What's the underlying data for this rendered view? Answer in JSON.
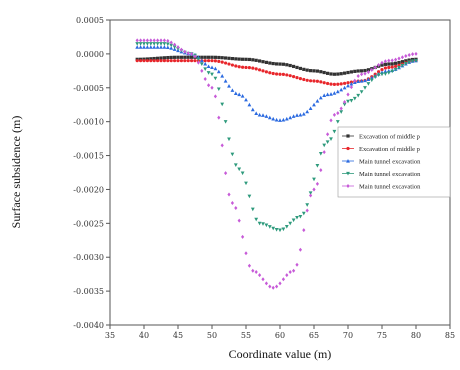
{
  "chart_data": {
    "type": "scatter",
    "xlabel": "Coordinate value (m)",
    "ylabel": "Surface subsidence (m)",
    "xlim": [
      35,
      85
    ],
    "ylim": [
      -0.004,
      0.0005
    ],
    "x_ticks": [
      "35",
      "40",
      "45",
      "50",
      "55",
      "60",
      "65",
      "70",
      "75",
      "80",
      "85"
    ],
    "y_ticks": [
      "0.0005",
      "0.0000",
      "-0.0005",
      "-0.0010",
      "-0.0015",
      "-0.0020",
      "-0.0025",
      "-0.0030",
      "-0.0035",
      "-0.0040"
    ],
    "legend_position": "right",
    "series": [
      {
        "name": "Excavation of middle p",
        "color": "#333333",
        "marker": "square",
        "points": [
          [
            39,
            -8e-05
          ],
          [
            45,
            -5e-05
          ],
          [
            50,
            -5e-05
          ],
          [
            55,
            -8e-05
          ],
          [
            60,
            -0.00015
          ],
          [
            65,
            -0.00025
          ],
          [
            68,
            -0.0003
          ],
          [
            72,
            -0.00025
          ],
          [
            76,
            -0.00015
          ],
          [
            80,
            -8e-05
          ]
        ]
      },
      {
        "name": "Excavation of middle p",
        "color": "#e8262b",
        "marker": "circle",
        "points": [
          [
            39,
            -0.0001
          ],
          [
            45,
            -0.0001
          ],
          [
            50,
            -0.0001
          ],
          [
            55,
            -0.0002
          ],
          [
            60,
            -0.0003
          ],
          [
            65,
            -0.0004
          ],
          [
            68,
            -0.00045
          ],
          [
            72,
            -0.0004
          ],
          [
            76,
            -0.0002
          ],
          [
            80,
            -0.0001
          ]
        ]
      },
      {
        "name": "Main tunnel excavation",
        "color": "#2b6ae0",
        "marker": "triangle-up",
        "points": [
          [
            39,
            0.0001
          ],
          [
            43,
            0.0001
          ],
          [
            47,
            0.0
          ],
          [
            50,
            -0.0002
          ],
          [
            54,
            -0.0006
          ],
          [
            57,
            -0.0009
          ],
          [
            60,
            -0.00098
          ],
          [
            63,
            -0.0009
          ],
          [
            67,
            -0.0006
          ],
          [
            72,
            -0.0004
          ],
          [
            76,
            -0.00025
          ],
          [
            80,
            -0.0001
          ]
        ]
      },
      {
        "name": "Main tunnel excavation",
        "color": "#2e9a7c",
        "marker": "triangle-down",
        "points": [
          [
            39,
            0.00015
          ],
          [
            43,
            0.00015
          ],
          [
            47,
            0.0
          ],
          [
            50,
            -0.0003
          ],
          [
            54,
            -0.0017
          ],
          [
            57,
            -0.0025
          ],
          [
            60,
            -0.0026
          ],
          [
            63,
            -0.0024
          ],
          [
            67,
            -0.0013
          ],
          [
            70,
            -0.0007
          ],
          [
            75,
            -0.0003
          ],
          [
            80,
            -0.0001
          ]
        ]
      },
      {
        "name": "Main tunnel excavation",
        "color": "#c75bd8",
        "marker": "diamond",
        "points": [
          [
            39,
            0.0002
          ],
          [
            43,
            0.0002
          ],
          [
            47,
            0.0
          ],
          [
            50,
            -0.0005
          ],
          [
            53,
            -0.0022
          ],
          [
            56,
            -0.0032
          ],
          [
            59,
            -0.00345
          ],
          [
            62,
            -0.0032
          ],
          [
            65,
            -0.002
          ],
          [
            68,
            -0.0009
          ],
          [
            72,
            -0.0003
          ],
          [
            76,
            -0.0001
          ],
          [
            80,
            0.0
          ]
        ]
      }
    ]
  }
}
